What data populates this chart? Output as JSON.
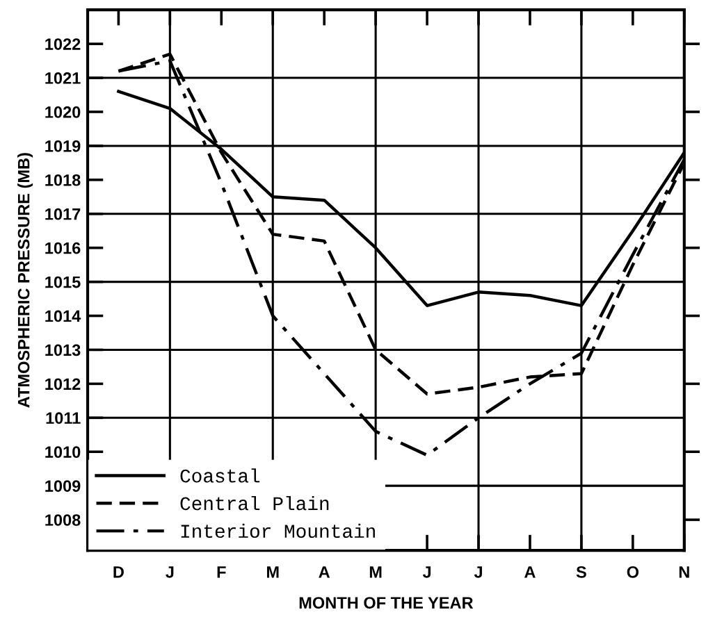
{
  "chart_data": {
    "type": "line",
    "xlabel": "MONTH OF THE YEAR",
    "ylabel": "ATMOSPHERIC PRESSURE (MB)",
    "categories": [
      "D",
      "J",
      "F",
      "M",
      "A",
      "M",
      "J",
      "J",
      "A",
      "S",
      "O",
      "N"
    ],
    "series": [
      {
        "name": "Coastal",
        "color": "#000000",
        "line_style": "solid",
        "values": [
          1020.6,
          1020.1,
          1018.9,
          1017.5,
          1017.4,
          1016.0,
          1014.3,
          1014.7,
          1014.6,
          1014.3,
          1016.5,
          1018.8
        ]
      },
      {
        "name": "Central Plain",
        "color": "#000000",
        "line_style": "dashed",
        "values": [
          1021.2,
          1021.7,
          1018.8,
          1016.4,
          1016.2,
          1013.0,
          1011.7,
          1011.9,
          1012.2,
          1012.3,
          1015.5,
          1018.5
        ]
      },
      {
        "name": "Interior Mountain",
        "color": "#000000",
        "line_style": "dashdot",
        "values": [
          1021.2,
          1021.5,
          1017.9,
          1014.0,
          1012.3,
          1010.6,
          1009.9,
          1011.0,
          1012.0,
          1012.9,
          1015.8,
          1018.6
        ]
      }
    ],
    "ylim": [
      1007.1,
      1023
    ],
    "yticks": [
      1008,
      1009,
      1010,
      1011,
      1012,
      1013,
      1014,
      1015,
      1016,
      1017,
      1018,
      1019,
      1020,
      1021,
      1022
    ],
    "grid": true,
    "legend": "bottom left",
    "marker": "none"
  }
}
